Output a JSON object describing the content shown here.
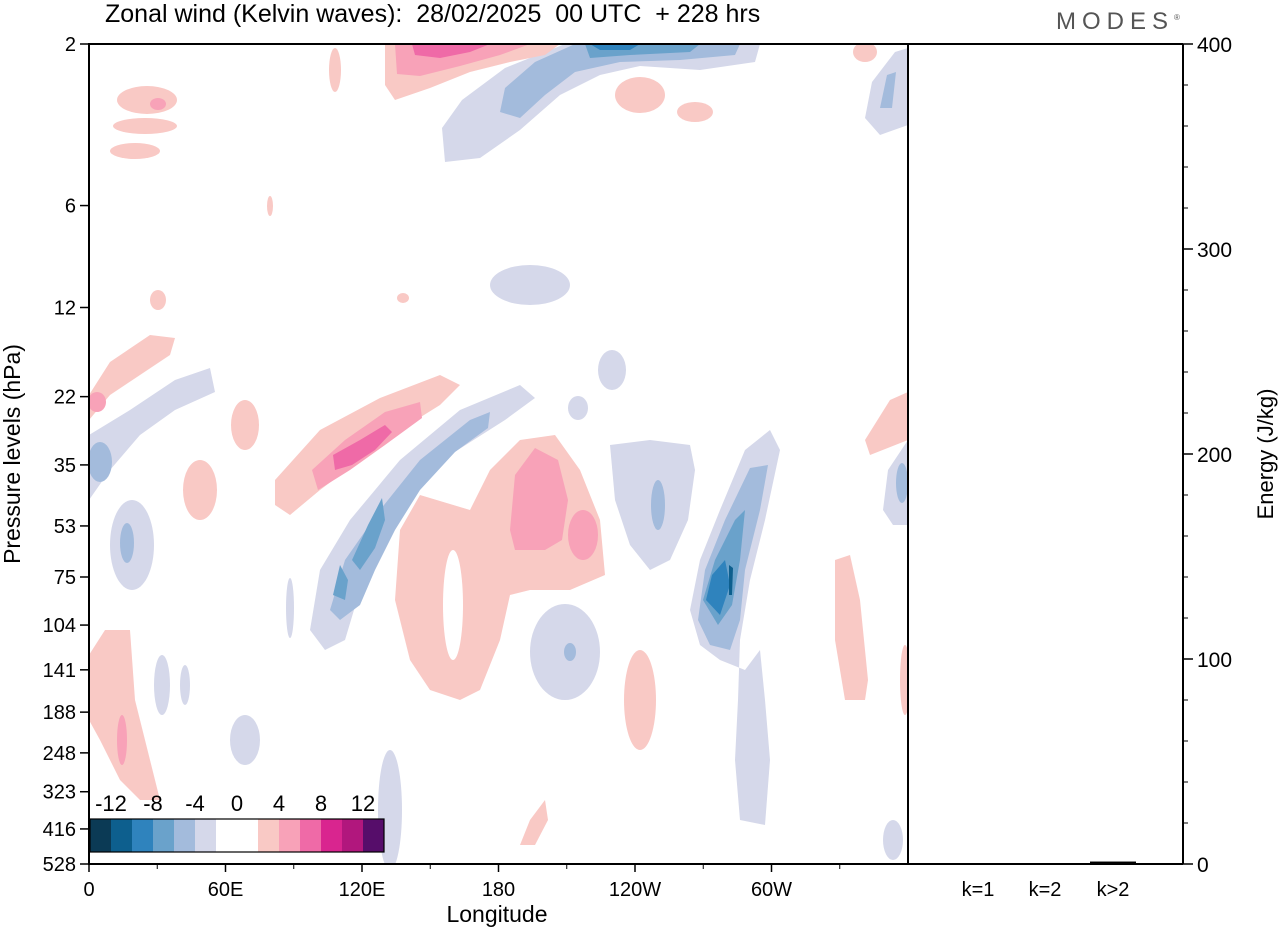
{
  "title": "Zonal wind (Kelvin waves):  28/02/2025  00 UTC  + 228 hrs",
  "brand": "MODES",
  "brand_mark": "®",
  "chart_data": [
    {
      "type": "heatmap",
      "title": "Zonal wind (Kelvin waves):  28/02/2025  00 UTC  + 228 hrs",
      "xlabel": "Longitude",
      "ylabel": "Pressure levels (hPa)",
      "x_ticks": [
        "0",
        "60E",
        "120E",
        "180",
        "120W",
        "60W"
      ],
      "y_ticks": [
        "2",
        "6",
        "12",
        "22",
        "35",
        "53",
        "75",
        "104",
        "141",
        "188",
        "248",
        "323",
        "416",
        "528"
      ],
      "y_scale": "log (inverted)",
      "colorbar": {
        "labels": [
          "-12",
          "-8",
          "-4",
          "0",
          "4",
          "8",
          "12"
        ],
        "colors": [
          "#0b3a55",
          "#0d5f8e",
          "#2f83bd",
          "#6aa2cb",
          "#a3bbdc",
          "#d5d8ea",
          "#ffffff",
          "#ffffff",
          "#f9c9c5",
          "#f8a2b8",
          "#ef6aa7",
          "#d9258f",
          "#b1177d",
          "#560d6a"
        ]
      },
      "contour_regions": [
        {
          "sign": "negative",
          "max_abs": 12,
          "lon_range": [
            "150E",
            "140W"
          ],
          "level_range": [
            2,
            6
          ]
        },
        {
          "sign": "negative",
          "max_abs": 12,
          "lon_range": [
            "100E",
            "150E"
          ],
          "level_range": [
            75,
            188
          ]
        },
        {
          "sign": "negative",
          "max_abs": 12,
          "lon_range": [
            "80W",
            "60W"
          ],
          "level_range": [
            104,
            248
          ]
        },
        {
          "sign": "positive",
          "max_abs": 8,
          "lon_range": [
            "90E",
            "130E"
          ],
          "level_range": [
            53,
            104
          ]
        },
        {
          "sign": "positive",
          "max_abs": 8,
          "lon_range": [
            "130E",
            "160W"
          ],
          "level_range": [
            75,
            248
          ]
        },
        {
          "sign": "positive",
          "max_abs": 8,
          "lon_range": [
            "120E",
            "160E"
          ],
          "level_range": [
            2,
            6
          ]
        }
      ]
    },
    {
      "type": "bar",
      "categories": [
        "k=1",
        "k=2",
        "k>2"
      ],
      "values": [
        0.3,
        0.4,
        1.2
      ],
      "ylabel": "Energy (J/kg)",
      "ylim": [
        0,
        400
      ],
      "y_ticks": [
        "0",
        "100",
        "200",
        "300",
        "400"
      ]
    }
  ]
}
